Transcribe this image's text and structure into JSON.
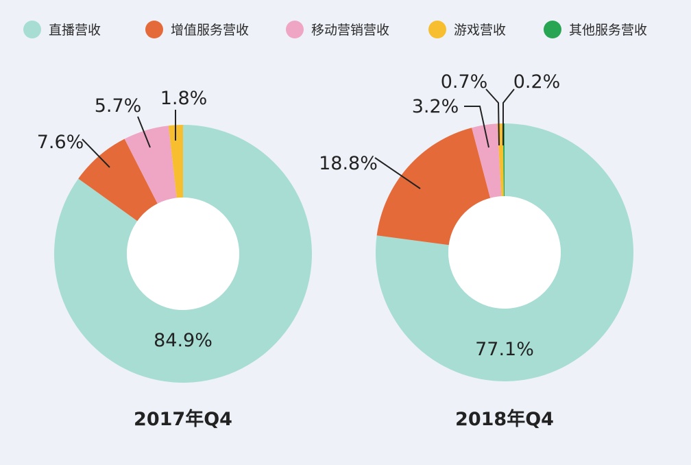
{
  "legend": [
    {
      "label": "直播营收",
      "color": "#a8ddd3"
    },
    {
      "label": "增值服务营收",
      "color": "#e46a3a"
    },
    {
      "label": "移动营销营收",
      "color": "#efa6c4"
    },
    {
      "label": "游戏营收",
      "color": "#f7bf2f"
    },
    {
      "label": "其他服务营收",
      "color": "#27a552"
    }
  ],
  "chart_data": [
    {
      "type": "pie",
      "title": "2017年Q4",
      "categories": [
        "直播营收",
        "增值服务营收",
        "移动营销营收",
        "游戏营收"
      ],
      "values": [
        84.9,
        7.6,
        5.7,
        1.8
      ],
      "labels": [
        "84.9%",
        "7.6%",
        "5.7%",
        "1.8%"
      ],
      "colors": [
        "#a8ddd3",
        "#e46a3a",
        "#efa6c4",
        "#f7bf2f"
      ]
    },
    {
      "type": "pie",
      "title": "2018年Q4",
      "categories": [
        "直播营收",
        "增值服务营收",
        "移动营销营收",
        "游戏营收",
        "其他服务营收"
      ],
      "values": [
        77.1,
        18.8,
        3.2,
        0.7,
        0.2
      ],
      "labels": [
        "77.1%",
        "18.8%",
        "3.2%",
        "0.7%",
        "0.2%"
      ],
      "colors": [
        "#a8ddd3",
        "#e46a3a",
        "#efa6c4",
        "#f7bf2f",
        "#27a552"
      ]
    }
  ]
}
